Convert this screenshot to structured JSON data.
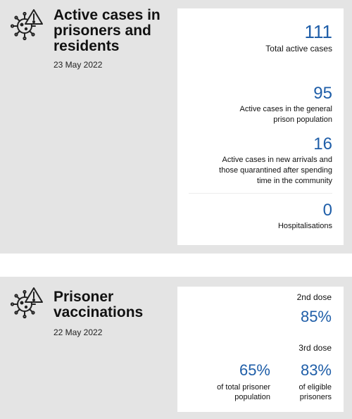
{
  "cases": {
    "title": "Active cases in prisoners and residents",
    "date": "23 May 2022",
    "total": {
      "value": "111",
      "label": "Total active cases"
    },
    "general": {
      "value": "95",
      "label_line1": "Active cases in the general",
      "label_line2": "prison population"
    },
    "arrivals": {
      "value": "16",
      "label_line1": "Active cases in new arrivals and",
      "label_line2": "those quarantined after spending",
      "label_line3": "time in the community"
    },
    "hospital": {
      "value": "0",
      "label": "Hospitalisations"
    }
  },
  "vaccinations": {
    "title": "Prisoner vaccinations",
    "date": "22 May 2022",
    "dose2": {
      "label": "2nd dose",
      "value": "85%"
    },
    "dose3": {
      "label": "3rd dose",
      "total": {
        "value": "65%",
        "label_line1": "of total prisoner",
        "label_line2": "population"
      },
      "eligible": {
        "value": "83%",
        "label_line1": "of eligible",
        "label_line2": "prisoners"
      }
    }
  },
  "colors": {
    "accent": "#1f5ea8",
    "panel": "#e4e4e4",
    "card": "#ffffff"
  },
  "icons": {
    "section_icon": "virus-warning-icon"
  }
}
